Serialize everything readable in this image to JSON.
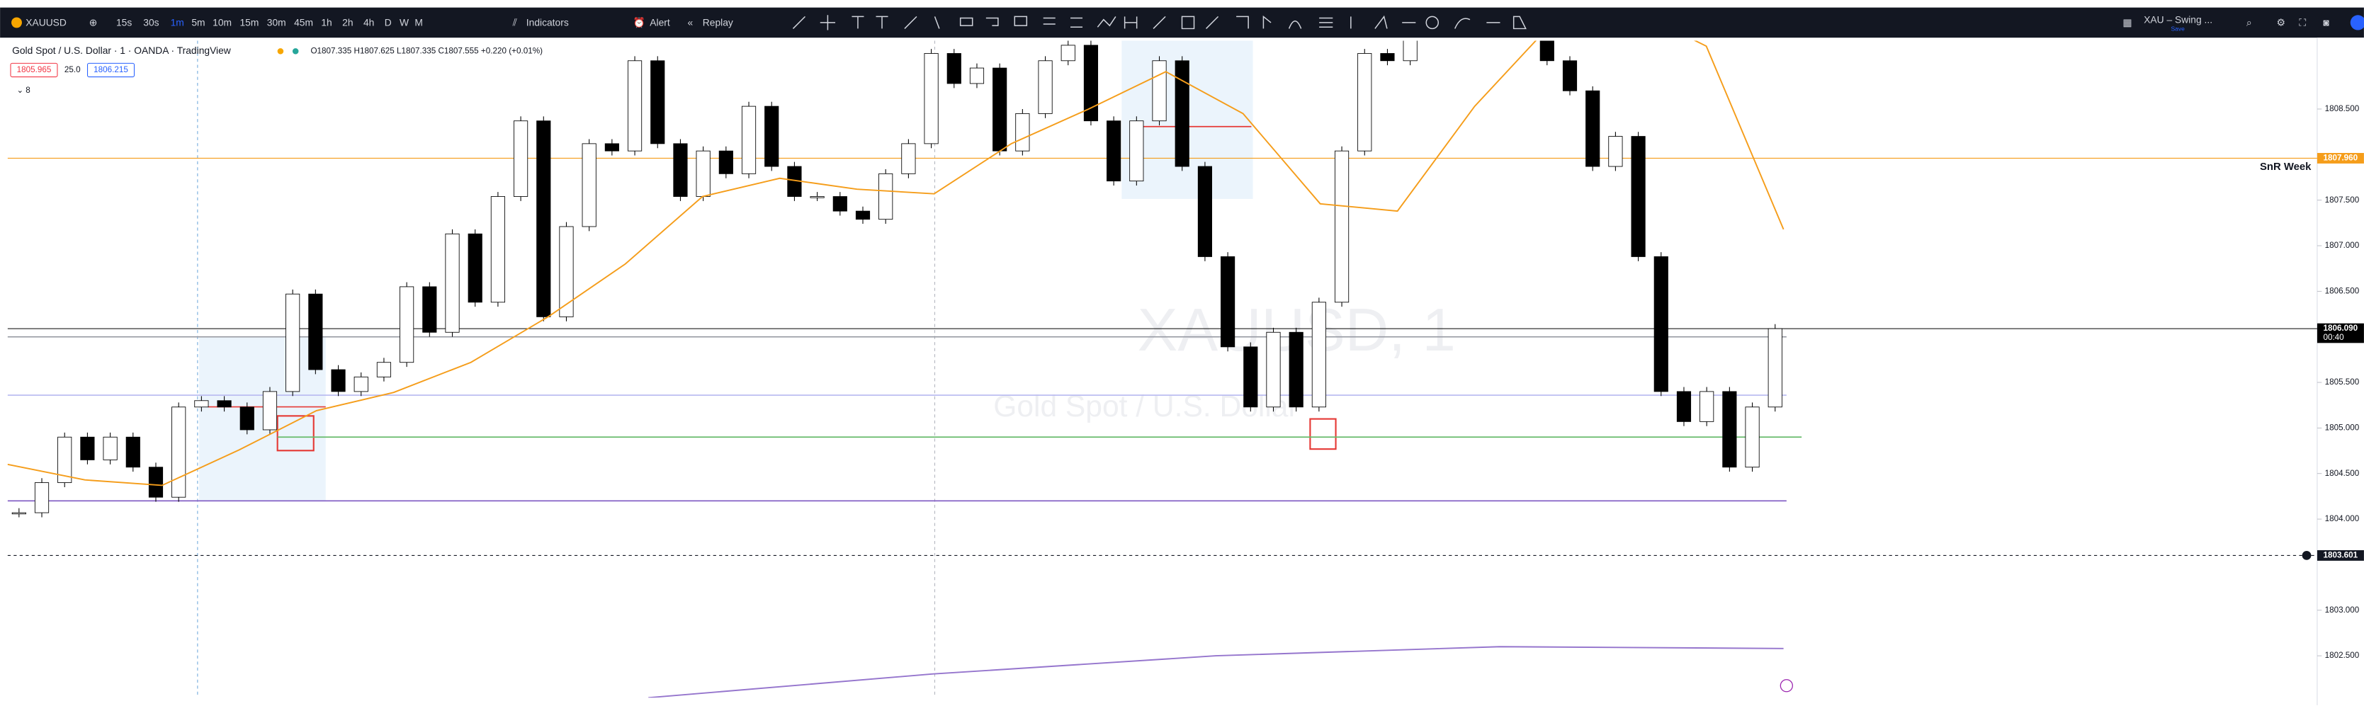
{
  "toolbar": {
    "symbol": "XAUUSD",
    "intervals": [
      "15s",
      "30s",
      "1m",
      "5m",
      "10m",
      "15m",
      "30m",
      "45m",
      "1h",
      "2h",
      "4h",
      "D",
      "W",
      "M"
    ],
    "active_interval": 2,
    "indicators": "Indicators",
    "alert": "Alert",
    "replay": "Replay",
    "layout_name": "XAU – Swing ...",
    "save": "Save"
  },
  "legend": {
    "title": "Gold Spot / U.S. Dollar · 1 · OANDA · TradingView",
    "ohlc": "O1807.335 H1807.625 L1807.335 C1807.555 +0.220 (+0.01%)",
    "bid": "1805.965",
    "spread": "25.0",
    "ask": "1806.215",
    "indicator_count": "8"
  },
  "watermark": {
    "symbol": "XAUUSD, 1",
    "description": "Gold Spot / U.S. Dollar"
  },
  "chart_data": {
    "type": "candlestick",
    "closes": [
      1804.07,
      1804.4,
      1804.9,
      1804.65,
      1804.9,
      1804.57,
      1804.24,
      1805.23,
      1805.3,
      1805.23,
      1804.98,
      1805.4,
      1806.47,
      1805.64,
      1805.4,
      1805.56,
      1805.72,
      1806.55,
      1806.05,
      1807.13,
      1806.38,
      1807.54,
      1808.37,
      1806.22,
      1807.21,
      1808.12,
      1808.04,
      1809.03,
      1808.12,
      1807.54,
      1808.04,
      1807.79,
      1808.53,
      1807.87,
      1807.54,
      1807.54,
      1807.38,
      1807.29,
      1807.79,
      1808.12,
      1809.11,
      1808.78,
      1808.95,
      1808.04,
      1808.45,
      1809.03,
      1809.2,
      1808.37,
      1807.71,
      1808.37,
      1809.03,
      1807.87,
      1806.88,
      1805.89,
      1805.23,
      1806.05,
      1805.23,
      1806.38,
      1808.04,
      1809.11,
      1809.03,
      1809.6,
      1809.8,
      1809.7,
      1809.5,
      1809.6,
      1809.9,
      1809.03,
      1808.7,
      1807.87,
      1808.2,
      1806.88,
      1805.4,
      1805.07,
      1805.4,
      1804.57,
      1805.23,
      1806.09
    ],
    "up_color": "#ffffff",
    "down_color": "#000000",
    "ma": {
      "color": "#f59d1a",
      "values": [
        1804.6,
        1804.43,
        1804.37,
        1804.76,
        1805.19,
        1805.39,
        1805.72,
        1806.22,
        1806.8,
        1807.54,
        1807.74,
        1807.62,
        1807.57,
        1808.12,
        1808.5,
        1808.91,
        1808.45,
        1807.46,
        1807.38,
        1808.53,
        1809.44,
        1809.61,
        1809.19,
        1807.18
      ]
    },
    "long_ma": {
      "color": "#9575cd",
      "values": [
        1802.04,
        1802.3,
        1802.5,
        1802.6,
        1802.58
      ]
    },
    "ylim": [
      1802.04,
      1809.25
    ],
    "yticks": [
      {
        "value": 1802.5,
        "label": "1802.500"
      },
      {
        "value": 1803,
        "label": "1803.000"
      },
      {
        "value": 1804,
        "label": "1804.000"
      },
      {
        "value": 1804.5,
        "label": "1804.500"
      },
      {
        "value": 1805,
        "label": "1805.000"
      },
      {
        "value": 1805.5,
        "label": "1805.500"
      },
      {
        "value": 1806.5,
        "label": "1806.500"
      },
      {
        "value": 1807,
        "label": "1807.000"
      },
      {
        "value": 1807.5,
        "label": "1807.500"
      },
      {
        "value": 1808.5,
        "label": "1808.500"
      }
    ],
    "grid": false,
    "levels": [
      {
        "name": "SnR Week",
        "value": 1807.96,
        "label": "1807.960",
        "color": "#f59d1a"
      },
      {
        "value": 1806.09,
        "label": "1806.090",
        "time": "00:40",
        "color": "#000000"
      },
      {
        "value": 1803.601,
        "label": "1803.601",
        "color": "#131722"
      }
    ],
    "lines": [
      {
        "value": 1806.0,
        "color": "#9598a1"
      },
      {
        "value": 1805.36,
        "color": "#b7b9f0"
      },
      {
        "value": 1804.9,
        "color": "#66bb6a"
      },
      {
        "value": 1804.2,
        "color": "#7e57c2"
      }
    ]
  }
}
